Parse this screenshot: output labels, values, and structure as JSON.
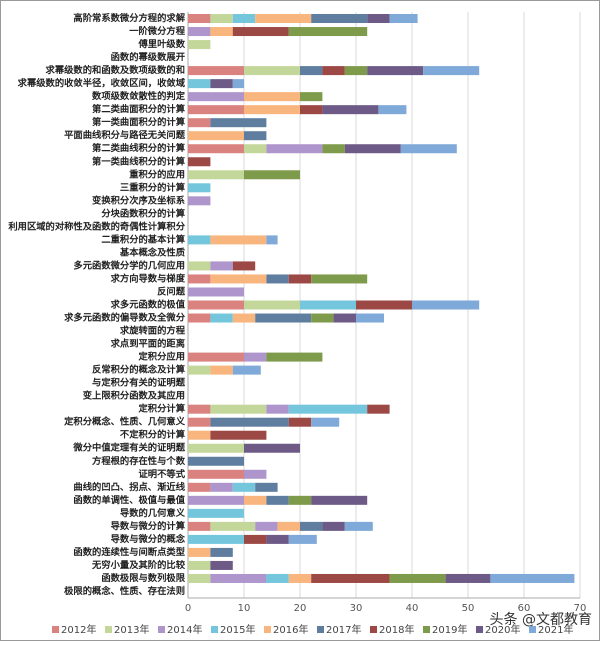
{
  "chart_data": {
    "type": "stacked-barh",
    "categories": [
      "高阶常系数微分方程的求解",
      "一阶微分方程",
      "傅里叶级数",
      "函数的幂级数展开",
      "求幂级数的和函数及数项级数的和",
      "求幂级数的收敛半径，收敛区间，收敛域",
      "数项级数敛散性的判定",
      "第二类曲面积分的计算",
      "第一类曲面积分的计算",
      "平面曲线积分与路径无关问题",
      "第二类曲线积分的计算",
      "第一类曲线积分的计算",
      "重积分的应用",
      "三重积分的计算",
      "变换积分次序及坐标系",
      "分块函数积分的计算",
      "利用区域的对称性及函数的奇偶性计算积分",
      "二重积分的基本计算",
      "基本概念及性质",
      "多元函数微分学的几何应用",
      "求方向导数与梯度",
      "反问题",
      "求多元函数的极值",
      "求多元函数的偏导数及全微分",
      "求旋转面的方程",
      "求点到平面的距离",
      "定积分应用",
      "反常积分的概念及计算",
      "与定积分有关的证明题",
      "变上限积分函数及其应用",
      "定积分计算",
      "定积分概念、性质、几何意义",
      "不定积分的计算",
      "微分中值定理有关的证明题",
      "方程根的存在性与个数",
      "证明不等式",
      "曲线的凹凸、拐点、渐近线",
      "函数的单调性、极值与最值",
      "导数的几何意义",
      "导数与微分的计算",
      "导数与微分的概念",
      "函数的连续性与间断点类型",
      "无穷小量及其阶的比较",
      "函数极限与数列极限",
      "极限的概念、性质、存在法则"
    ],
    "series": [
      {
        "name": "2012年",
        "color": "#d9827f",
        "values": [
          4,
          0,
          0,
          0,
          10,
          0,
          0,
          10,
          4,
          0,
          10,
          0,
          0,
          0,
          0,
          0,
          0,
          0,
          0,
          0,
          4,
          0,
          10,
          4,
          0,
          0,
          10,
          0,
          0,
          0,
          4,
          4,
          0,
          0,
          0,
          10,
          4,
          0,
          0,
          4,
          0,
          0,
          0,
          0,
          0
        ]
      },
      {
        "name": "2013年",
        "color": "#c4d79b",
        "values": [
          4,
          0,
          4,
          0,
          10,
          0,
          0,
          0,
          0,
          0,
          4,
          0,
          10,
          0,
          0,
          0,
          0,
          0,
          0,
          4,
          0,
          0,
          10,
          0,
          0,
          0,
          0,
          4,
          0,
          0,
          10,
          0,
          0,
          10,
          0,
          0,
          0,
          0,
          0,
          8,
          0,
          0,
          4,
          4,
          0
        ]
      },
      {
        "name": "2014年",
        "color": "#ae96cc",
        "values": [
          0,
          4,
          0,
          0,
          0,
          0,
          10,
          0,
          0,
          0,
          10,
          0,
          0,
          0,
          4,
          0,
          0,
          0,
          0,
          4,
          0,
          10,
          0,
          0,
          0,
          0,
          4,
          0,
          0,
          0,
          4,
          0,
          0,
          0,
          0,
          4,
          4,
          10,
          0,
          4,
          0,
          0,
          0,
          10,
          0
        ]
      },
      {
        "name": "2015年",
        "color": "#73c6dc",
        "values": [
          4,
          0,
          0,
          0,
          0,
          4,
          0,
          0,
          0,
          0,
          0,
          0,
          0,
          4,
          0,
          0,
          0,
          4,
          0,
          0,
          0,
          0,
          10,
          4,
          0,
          0,
          0,
          0,
          0,
          0,
          14,
          0,
          0,
          0,
          0,
          0,
          4,
          0,
          10,
          0,
          10,
          0,
          0,
          4,
          0
        ]
      },
      {
        "name": "2016年",
        "color": "#f9b57e",
        "values": [
          10,
          4,
          0,
          0,
          0,
          0,
          10,
          10,
          0,
          10,
          0,
          0,
          0,
          0,
          0,
          0,
          0,
          10,
          0,
          0,
          10,
          0,
          0,
          4,
          0,
          0,
          0,
          4,
          0,
          0,
          0,
          0,
          4,
          0,
          0,
          0,
          0,
          4,
          0,
          4,
          0,
          4,
          0,
          4,
          0
        ]
      },
      {
        "name": "2017年",
        "color": "#5f7e9f",
        "values": [
          10,
          0,
          0,
          0,
          4,
          0,
          0,
          0,
          10,
          4,
          0,
          0,
          0,
          0,
          0,
          0,
          0,
          0,
          0,
          0,
          4,
          0,
          0,
          10,
          0,
          0,
          0,
          0,
          0,
          0,
          0,
          14,
          0,
          0,
          10,
          0,
          4,
          4,
          0,
          4,
          0,
          4,
          0,
          0,
          0
        ]
      },
      {
        "name": "2018年",
        "color": "#9c4845",
        "values": [
          0,
          10,
          0,
          0,
          4,
          0,
          0,
          4,
          0,
          0,
          0,
          4,
          0,
          0,
          0,
          0,
          0,
          0,
          0,
          4,
          4,
          0,
          10,
          0,
          0,
          0,
          0,
          0,
          0,
          0,
          4,
          4,
          10,
          0,
          0,
          0,
          0,
          0,
          0,
          0,
          4,
          0,
          0,
          14,
          0
        ]
      },
      {
        "name": "2019年",
        "color": "#7e9a4b",
        "values": [
          0,
          14,
          0,
          0,
          4,
          0,
          4,
          0,
          0,
          0,
          4,
          0,
          10,
          0,
          0,
          0,
          0,
          0,
          0,
          0,
          10,
          0,
          0,
          4,
          0,
          0,
          10,
          0,
          0,
          0,
          0,
          0,
          0,
          0,
          0,
          0,
          0,
          4,
          0,
          0,
          0,
          0,
          0,
          10,
          0
        ]
      },
      {
        "name": "2020年",
        "color": "#6d5a86",
        "values": [
          4,
          0,
          0,
          0,
          10,
          4,
          0,
          10,
          0,
          0,
          10,
          0,
          0,
          0,
          0,
          0,
          0,
          0,
          0,
          0,
          0,
          0,
          0,
          4,
          0,
          0,
          0,
          0,
          0,
          0,
          0,
          0,
          0,
          10,
          0,
          0,
          0,
          10,
          0,
          4,
          4,
          0,
          4,
          8,
          0
        ]
      },
      {
        "name": "2021年",
        "color": "#7ea9d8",
        "values": [
          5,
          0,
          0,
          0,
          10,
          2,
          0,
          5,
          0,
          0,
          10,
          0,
          0,
          0,
          0,
          0,
          0,
          2,
          0,
          0,
          0,
          0,
          12,
          5,
          0,
          0,
          0,
          5,
          0,
          0,
          0,
          5,
          0,
          0,
          0,
          0,
          0,
          0,
          0,
          5,
          5,
          0,
          0,
          15,
          0
        ]
      }
    ],
    "xlim": [
      0,
      70
    ],
    "xticks": [
      0,
      10,
      20,
      30,
      40,
      50,
      60,
      70
    ],
    "grid": true,
    "watermark": "头条 @文都教育"
  }
}
